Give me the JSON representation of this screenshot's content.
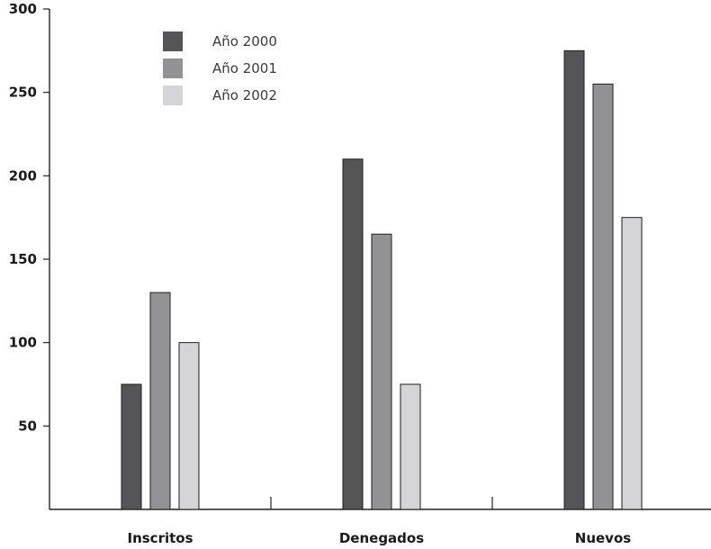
{
  "chart_data": {
    "type": "bar",
    "categories": [
      "Inscritos",
      "Denegados",
      "Nuevos"
    ],
    "series": [
      {
        "name": "Año 2000",
        "values": [
          75,
          210,
          275
        ],
        "color": "#555557"
      },
      {
        "name": "Año 2001",
        "values": [
          130,
          165,
          255
        ],
        "color": "#929295"
      },
      {
        "name": "Año 2002",
        "values": [
          100,
          75,
          175
        ],
        "color": "#d5d5d7"
      }
    ],
    "yticks": [
      50,
      100,
      150,
      200,
      250,
      300
    ],
    "ytick_labels": [
      "50",
      "100",
      "150",
      "200",
      "250",
      "300"
    ],
    "ylim": [
      0,
      300
    ],
    "legend_position": "top-left",
    "grid": false,
    "title": "",
    "xlabel": "",
    "ylabel": ""
  }
}
